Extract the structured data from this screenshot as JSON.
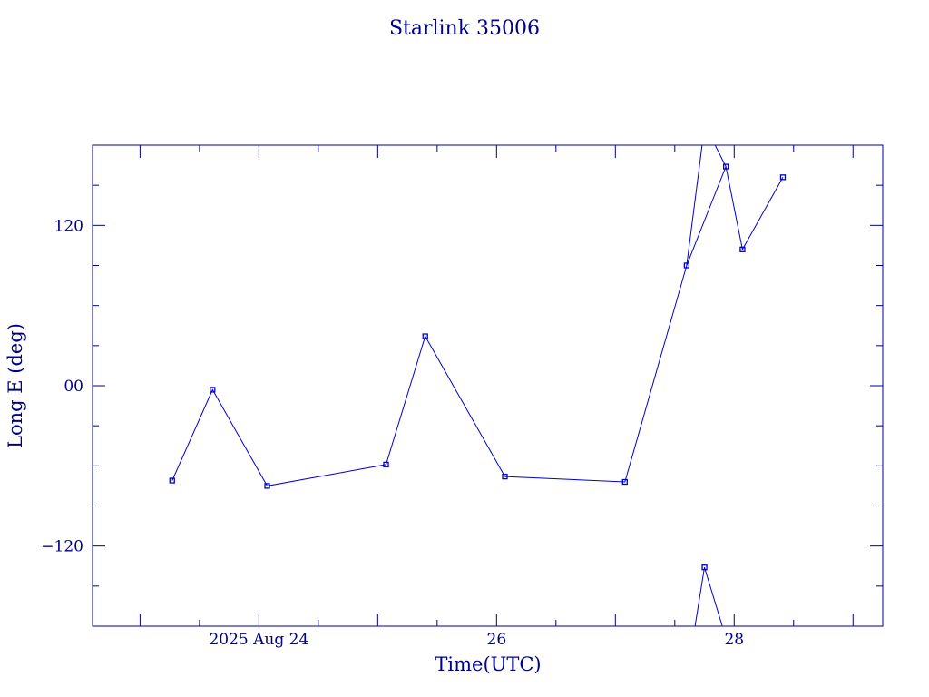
{
  "chart_data": {
    "type": "line",
    "title": "Starlink 35006",
    "xlabel": "Time(UTC)",
    "ylabel": "Long E (deg)",
    "x_unit": "days (Aug 2025)",
    "xlim": [
      22.6,
      29.25
    ],
    "ylim": [
      -180,
      180
    ],
    "x_ticks": [
      {
        "value": 24,
        "label": "2025 Aug 24"
      },
      {
        "value": 26,
        "label": "26"
      },
      {
        "value": 28,
        "label": "28"
      }
    ],
    "y_ticks": [
      {
        "value": 120,
        "label": "120"
      },
      {
        "value": 0,
        "label": "00"
      },
      {
        "value": -120,
        "label": "−120"
      }
    ],
    "grid": false,
    "color": "#0000cc",
    "series": [
      {
        "name": "",
        "points": [
          {
            "x": 23.27,
            "y": -71
          },
          {
            "x": 23.61,
            "y": -3
          },
          {
            "x": 24.07,
            "y": -75
          },
          {
            "x": 25.07,
            "y": -59
          },
          {
            "x": 25.4,
            "y": 37
          },
          {
            "x": 26.07,
            "y": -68
          },
          {
            "x": 27.08,
            "y": -72
          },
          {
            "x": 27.6,
            "y": 90
          },
          {
            "x": 27.93,
            "y": 164
          },
          {
            "x": 28.07,
            "y": 102
          },
          {
            "x": 28.41,
            "y": 156
          }
        ]
      },
      {
        "name": "",
        "points": [
          {
            "x": 27.6,
            "y": 90
          },
          {
            "x": 27.73,
            "y": 180
          }
        ],
        "markers": false
      },
      {
        "name": "",
        "points": [
          {
            "x": 27.84,
            "y": 180
          },
          {
            "x": 27.93,
            "y": 164
          }
        ],
        "markers": false
      },
      {
        "name": "",
        "points": [
          {
            "x": 27.67,
            "y": -180
          },
          {
            "x": 27.75,
            "y": -136
          },
          {
            "x": 27.9,
            "y": -180
          }
        ]
      }
    ]
  }
}
